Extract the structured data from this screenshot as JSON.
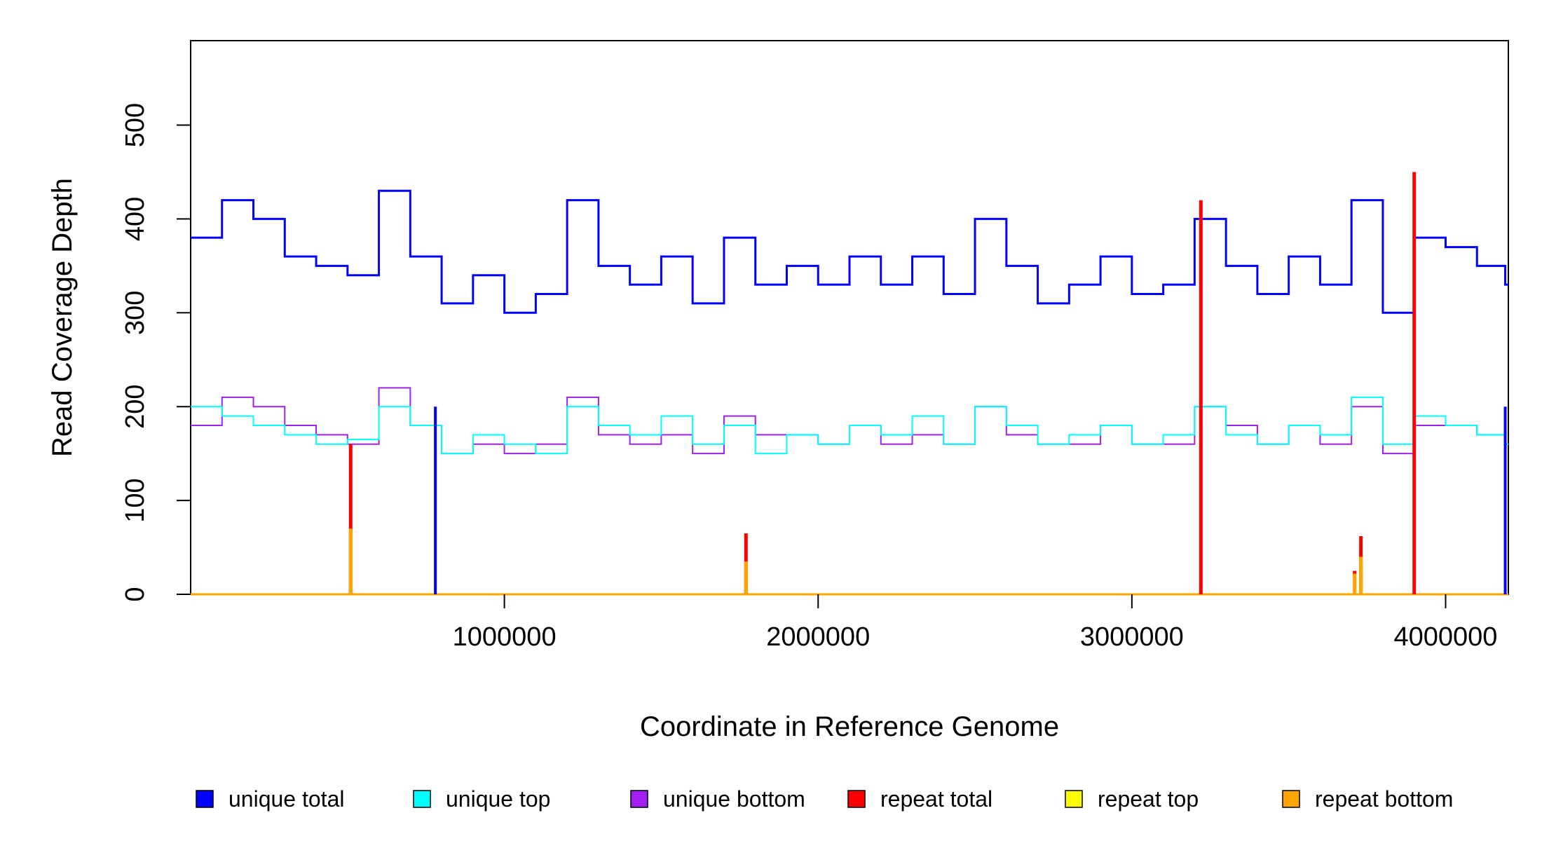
{
  "chart_data": {
    "type": "line",
    "title": "",
    "xlabel": "Coordinate in Reference Genome",
    "ylabel": "Read Coverage Depth",
    "xlim": [
      0,
      4200000
    ],
    "ylim": [
      0,
      590
    ],
    "x_ticks": [
      1000000,
      2000000,
      3000000,
      4000000
    ],
    "x_tick_labels": [
      "1000000",
      "2000000",
      "3000000",
      "4000000"
    ],
    "y_ticks": [
      0,
      100,
      200,
      300,
      400,
      500
    ],
    "y_tick_labels": [
      "0",
      "100",
      "200",
      "300",
      "400",
      "500"
    ],
    "grid": false,
    "legend_position": "bottom",
    "legend": [
      {
        "label": "unique total",
        "color": "#0000FF"
      },
      {
        "label": "unique top",
        "color": "#00FFFF"
      },
      {
        "label": "unique bottom",
        "color": "#A020F0"
      },
      {
        "label": "repeat total",
        "color": "#FF0000"
      },
      {
        "label": "repeat top",
        "color": "#FFFF00"
      },
      {
        "label": "repeat bottom",
        "color": "#FFA500"
      }
    ],
    "x": [
      0,
      100000,
      200000,
      300000,
      400000,
      500000,
      600000,
      700000,
      800000,
      900000,
      1000000,
      1100000,
      1200000,
      1300000,
      1400000,
      1500000,
      1600000,
      1700000,
      1800000,
      1900000,
      2000000,
      2100000,
      2200000,
      2300000,
      2400000,
      2500000,
      2600000,
      2700000,
      2800000,
      2900000,
      3000000,
      3100000,
      3200000,
      3300000,
      3400000,
      3500000,
      3600000,
      3700000,
      3800000,
      3900000,
      4000000,
      4100000,
      4190000
    ],
    "series": [
      {
        "name": "unique total",
        "color": "#0000FF",
        "values": [
          380,
          420,
          400,
          360,
          350,
          340,
          430,
          360,
          310,
          340,
          300,
          320,
          420,
          350,
          330,
          360,
          310,
          380,
          330,
          350,
          330,
          360,
          330,
          360,
          320,
          400,
          350,
          310,
          330,
          360,
          320,
          330,
          400,
          350,
          320,
          360,
          330,
          420,
          300,
          380,
          370,
          350,
          330
        ]
      },
      {
        "name": "unique top",
        "color": "#00FFFF",
        "values": [
          200,
          190,
          180,
          170,
          160,
          165,
          200,
          180,
          150,
          170,
          160,
          150,
          200,
          180,
          170,
          190,
          160,
          180,
          150,
          170,
          160,
          180,
          170,
          190,
          160,
          200,
          180,
          160,
          170,
          180,
          160,
          170,
          200,
          170,
          160,
          180,
          170,
          210,
          160,
          190,
          180,
          170,
          160
        ]
      },
      {
        "name": "unique bottom",
        "color": "#A020F0",
        "values": [
          180,
          210,
          200,
          180,
          170,
          160,
          220,
          180,
          150,
          160,
          150,
          160,
          210,
          170,
          160,
          170,
          150,
          190,
          170,
          170,
          160,
          180,
          160,
          170,
          160,
          200,
          170,
          160,
          160,
          180,
          160,
          160,
          200,
          180,
          160,
          180,
          160,
          200,
          150,
          180,
          180,
          170,
          160
        ]
      },
      {
        "name": "repeat total",
        "color": "#FF0000",
        "spikes": [
          [
            510000,
            160
          ],
          [
            1770000,
            65
          ],
          [
            3220000,
            420
          ],
          [
            3710000,
            25
          ],
          [
            3730000,
            62
          ],
          [
            3900000,
            450
          ]
        ]
      },
      {
        "name": "repeat top",
        "color": "#FFFF00",
        "spikes": [
          [
            3710000,
            20
          ],
          [
            3730000,
            30
          ]
        ]
      },
      {
        "name": "repeat bottom",
        "color": "#FFA500",
        "spikes": [
          [
            510000,
            70
          ],
          [
            1770000,
            35
          ],
          [
            3710000,
            22
          ],
          [
            3730000,
            40
          ]
        ]
      }
    ],
    "dips": [
      {
        "x": 780000,
        "y": 0
      },
      {
        "x": 3220000,
        "y": 0
      },
      {
        "x": 3900000,
        "y": 0
      },
      {
        "x": 4190000,
        "y": 0
      }
    ]
  }
}
